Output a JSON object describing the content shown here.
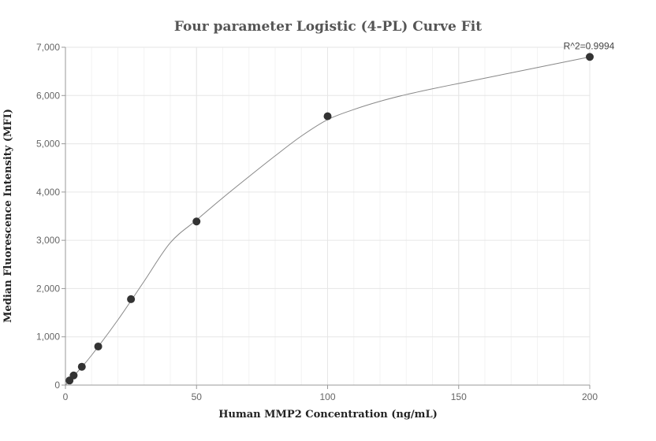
{
  "chart_data": {
    "type": "scatter",
    "title": "Four parameter Logistic (4-PL) Curve Fit",
    "xlabel": "Human MMP2 Concentration (ng/mL)",
    "ylabel": "Median Fluorescence Intensity (MFI)",
    "xlim": [
      0,
      200
    ],
    "ylim": [
      0,
      7000
    ],
    "x_ticks": [
      0,
      50,
      100,
      150,
      200
    ],
    "x_tick_labels": [
      "0",
      "50",
      "100",
      "150",
      "200"
    ],
    "y_ticks": [
      0,
      1000,
      2000,
      3000,
      4000,
      5000,
      6000,
      7000
    ],
    "y_tick_labels": [
      "0",
      "1,000",
      "2,000",
      "3,000",
      "4,000",
      "5,000",
      "6,000",
      "7,000"
    ],
    "grid": true,
    "annotation": "R^2=0.9994",
    "points": {
      "x": [
        1.56,
        3.13,
        6.25,
        12.5,
        25,
        50,
        100,
        200
      ],
      "y": [
        95,
        200,
        380,
        800,
        1780,
        3390,
        5570,
        6800
      ]
    },
    "fit_curve": {
      "x": [
        0,
        5,
        10,
        20,
        30,
        40,
        50,
        60,
        70,
        80,
        90,
        100,
        110,
        120,
        130,
        140,
        150,
        160,
        170,
        180,
        190,
        200
      ],
      "y": [
        0,
        300,
        620,
        1350,
        2150,
        2950,
        3420,
        3880,
        4320,
        4750,
        5160,
        5500,
        5710,
        5880,
        6020,
        6140,
        6250,
        6360,
        6470,
        6580,
        6690,
        6800
      ]
    },
    "colors": {
      "point": "#333333",
      "curve": "#888888",
      "grid": "#e6e6e6",
      "axis": "#999999"
    }
  }
}
